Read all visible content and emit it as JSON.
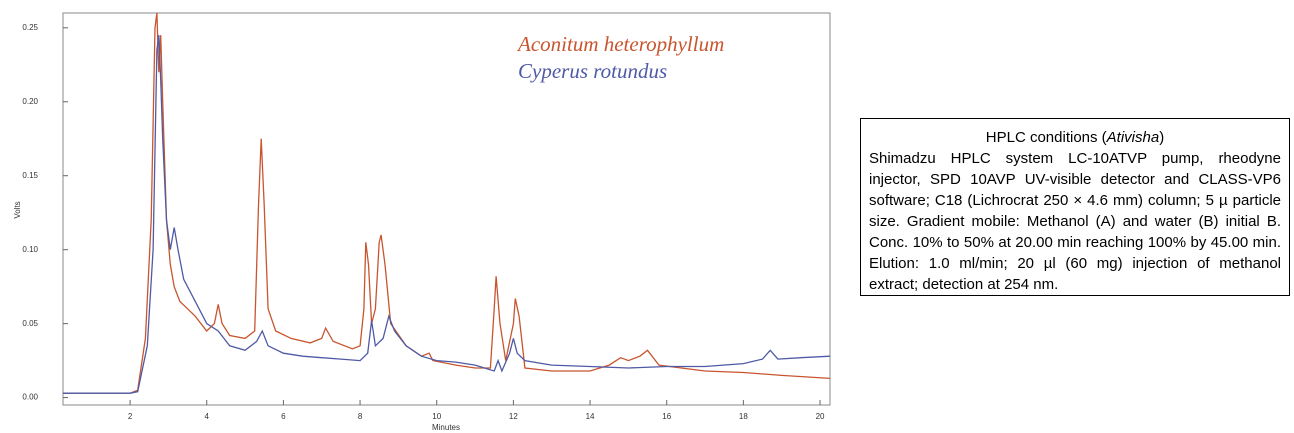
{
  "chart_data": {
    "type": "line",
    "ylabel": "Volts",
    "xlabel": "Minutes",
    "xlim": [
      0.25,
      20.26
    ],
    "ylim": [
      -0.005,
      0.26
    ],
    "xticks": [
      2,
      4,
      6,
      8,
      10,
      12,
      14,
      16,
      18,
      20
    ],
    "yticks": [
      {
        "value": 0,
        "label": "0.00"
      },
      0.05,
      {
        "value": 0.1,
        "label": "0.10"
      },
      0.15,
      {
        "value": 0.2,
        "label": "0.20"
      },
      0.25
    ],
    "series": [
      {
        "name": "Aconitum heterophyllum",
        "color": "#c8552e",
        "x": [
          0.25,
          2.0,
          2.2,
          2.4,
          2.55,
          2.65,
          2.7,
          2.75,
          2.8,
          2.85,
          2.95,
          3.05,
          3.15,
          3.3,
          3.5,
          3.7,
          4.0,
          4.2,
          4.3,
          4.4,
          4.6,
          5.0,
          5.25,
          5.35,
          5.42,
          5.5,
          5.6,
          5.8,
          6.2,
          6.7,
          7.0,
          7.1,
          7.3,
          7.8,
          8.0,
          8.1,
          8.15,
          8.22,
          8.3,
          8.4,
          8.5,
          8.55,
          8.65,
          8.8,
          9.2,
          9.6,
          9.8,
          9.9,
          10.5,
          11.0,
          11.4,
          11.5,
          11.55,
          11.65,
          11.8,
          12.0,
          12.05,
          12.15,
          12.3,
          13.0,
          14.0,
          14.5,
          14.8,
          15.0,
          15.3,
          15.5,
          15.8,
          17.0,
          18.0,
          19.0,
          20.26
        ],
        "values": [
          0.003,
          0.003,
          0.005,
          0.04,
          0.12,
          0.25,
          0.26,
          0.22,
          0.245,
          0.2,
          0.12,
          0.09,
          0.075,
          0.065,
          0.06,
          0.055,
          0.045,
          0.05,
          0.063,
          0.05,
          0.042,
          0.04,
          0.045,
          0.13,
          0.175,
          0.13,
          0.06,
          0.045,
          0.04,
          0.037,
          0.04,
          0.047,
          0.038,
          0.033,
          0.035,
          0.06,
          0.105,
          0.09,
          0.05,
          0.06,
          0.105,
          0.11,
          0.09,
          0.05,
          0.035,
          0.028,
          0.03,
          0.025,
          0.022,
          0.02,
          0.02,
          0.06,
          0.082,
          0.05,
          0.025,
          0.05,
          0.067,
          0.055,
          0.02,
          0.018,
          0.018,
          0.022,
          0.027,
          0.025,
          0.028,
          0.032,
          0.022,
          0.018,
          0.017,
          0.015,
          0.013
        ]
      },
      {
        "name": "Cyperus rotundus",
        "color": "#4f5aa6",
        "x": [
          0.25,
          2.0,
          2.2,
          2.45,
          2.6,
          2.7,
          2.75,
          2.8,
          2.85,
          2.95,
          3.05,
          3.15,
          3.25,
          3.4,
          3.6,
          3.8,
          4.0,
          4.3,
          4.6,
          5.0,
          5.3,
          5.45,
          5.6,
          6.0,
          6.5,
          7.0,
          7.5,
          8.0,
          8.2,
          8.3,
          8.4,
          8.6,
          8.75,
          8.9,
          9.2,
          9.6,
          10.0,
          10.5,
          11.0,
          11.5,
          11.6,
          11.7,
          11.9,
          12.0,
          12.1,
          12.3,
          13.0,
          14.0,
          15.0,
          16.0,
          17.0,
          18.0,
          18.5,
          18.7,
          18.9,
          19.5,
          20.26
        ],
        "values": [
          0.003,
          0.003,
          0.004,
          0.035,
          0.1,
          0.235,
          0.245,
          0.215,
          0.175,
          0.12,
          0.1,
          0.115,
          0.1,
          0.08,
          0.07,
          0.06,
          0.05,
          0.045,
          0.035,
          0.032,
          0.038,
          0.045,
          0.035,
          0.03,
          0.028,
          0.027,
          0.026,
          0.025,
          0.03,
          0.052,
          0.035,
          0.04,
          0.055,
          0.045,
          0.035,
          0.028,
          0.025,
          0.024,
          0.022,
          0.018,
          0.025,
          0.018,
          0.03,
          0.04,
          0.03,
          0.025,
          0.022,
          0.021,
          0.02,
          0.021,
          0.021,
          0.023,
          0.026,
          0.032,
          0.026,
          0.027,
          0.028
        ]
      }
    ]
  },
  "note_box": {
    "title_prefix": "HPLC conditions (",
    "title_italic": "Ativisha",
    "title_suffix": ")",
    "body": "Shimadzu HPLC system LC-10ATVP pump, rheodyne injector, SPD 10AVP UV-visible detector and CLASS-VP6 software; C18 (Lichrocrat 250 × 4.6 mm) column; 5 µ particle size. Gradient mobile: Methanol (A) and water (B) initial B. Conc. 10% to 50% at 20.00 min reaching 100% by 45.00 min. Elution: 1.0 ml/min; 20 µl (60 mg) injection of methanol extract; detection at 254 nm."
  }
}
